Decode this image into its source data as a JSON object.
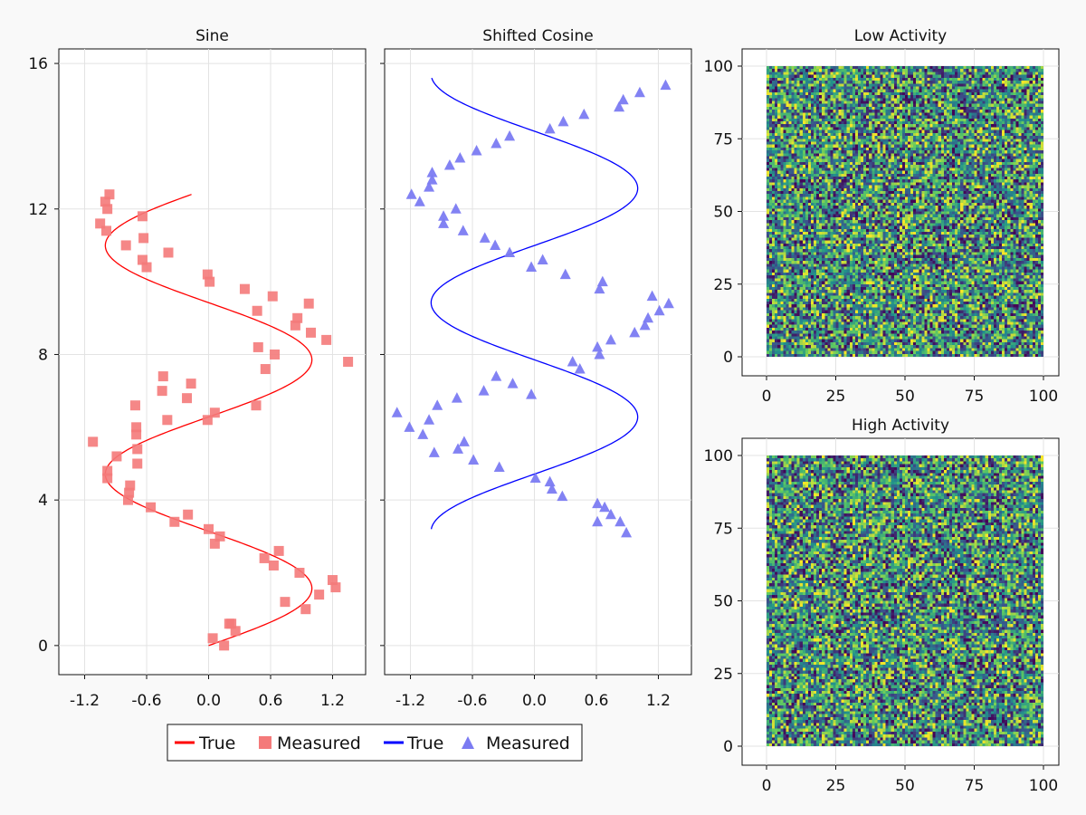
{
  "chart_data": [
    {
      "type": "line+scatter",
      "title": "Sine",
      "xlim": [
        -1.45,
        1.52
      ],
      "ylim": [
        -0.8,
        16.4
      ],
      "xticks": [
        -1.2,
        -0.6,
        0.0,
        0.6,
        1.2
      ],
      "xtick_labels": [
        "-1.2",
        "-0.6",
        "0.0",
        "0.6",
        "1.2"
      ],
      "yticks": [
        0,
        4,
        8,
        12,
        16
      ],
      "ytick_labels": [
        "0",
        "4",
        "8",
        "12",
        "16"
      ],
      "grid": true,
      "series": [
        {
          "name": "True",
          "kind": "line",
          "color": "#ff0000",
          "function": "x = sin(y), y from 0 to 12.4"
        },
        {
          "name": "Measured",
          "kind": "scatter",
          "marker": "square",
          "color": "#f47a7a",
          "x": [
            0.15,
            0.04,
            0.22,
            0.26,
            0.2,
            0.94,
            0.74,
            1.2,
            1.23,
            1.07,
            0.88,
            0.63,
            0.54,
            0.68,
            0.06,
            0.11,
            0.0,
            -0.2,
            -0.33,
            -0.56,
            -0.78,
            -0.77,
            -0.98,
            -0.98,
            -0.76,
            -0.69,
            -0.89,
            -0.69,
            -1.12,
            -0.7,
            -0.7,
            -0.01,
            0.46,
            0.06,
            -0.21,
            -0.45,
            -0.44,
            0.55,
            0.64,
            0.48,
            1.14,
            0.84,
            1.35,
            0.99,
            0.86,
            0.97,
            0.62,
            0.47,
            0.35,
            0.01,
            -0.01,
            -0.6,
            -0.64,
            -0.39,
            -0.8,
            -0.63,
            -0.99,
            -1.05,
            -0.64,
            -0.98,
            -1.0,
            -0.96,
            -0.71,
            -0.4,
            -0.17
          ],
          "y": [
            0.0,
            0.2,
            0.6,
            0.4,
            0.6,
            1.0,
            1.2,
            1.8,
            1.6,
            1.4,
            2.0,
            2.2,
            2.4,
            2.6,
            2.8,
            3.0,
            3.2,
            3.6,
            3.4,
            3.8,
            4.0,
            4.2,
            4.6,
            4.8,
            4.4,
            5.0,
            5.2,
            5.4,
            5.6,
            5.8,
            6.0,
            6.2,
            6.6,
            6.4,
            6.8,
            7.0,
            7.4,
            7.6,
            8.0,
            8.2,
            8.4,
            8.8,
            7.8,
            8.6,
            9.0,
            9.4,
            9.6,
            9.2,
            9.8,
            10.0,
            10.2,
            10.4,
            10.6,
            10.8,
            11.0,
            11.2,
            11.4,
            11.6,
            11.8,
            12.0,
            12.2,
            12.4,
            6.6,
            6.2,
            7.2
          ]
        }
      ]
    },
    {
      "type": "line+scatter",
      "title": "Shifted Cosine",
      "xlim": [
        -1.45,
        1.52
      ],
      "ylim": [
        -0.8,
        16.4
      ],
      "xticks": [
        -1.2,
        -0.6,
        0.0,
        0.6,
        1.2
      ],
      "xtick_labels": [
        "-1.2",
        "-0.6",
        "0.0",
        "0.6",
        "1.2"
      ],
      "yticks": [
        0,
        4,
        8,
        12,
        16
      ],
      "grid": true,
      "series": [
        {
          "name": "True",
          "kind": "line",
          "color": "#0000ff",
          "function": "x = cos(y), y from 3.2 to 15.6"
        },
        {
          "name": "Measured",
          "kind": "scatter",
          "marker": "triangle",
          "color": "#7b7bf2",
          "x": [
            0.89,
            0.61,
            0.83,
            0.74,
            0.68,
            0.61,
            0.27,
            0.17,
            0.15,
            0.01,
            -0.34,
            -0.59,
            -0.97,
            -0.74,
            -0.68,
            -1.08,
            -1.21,
            -1.02,
            -1.33,
            -0.94,
            -0.75,
            -0.49,
            -0.21,
            -0.37,
            0.44,
            0.37,
            0.63,
            0.61,
            0.74,
            0.97,
            1.07,
            1.1,
            1.21,
            1.3,
            1.14,
            0.63,
            0.66,
            0.3,
            -0.03,
            0.08,
            -0.24,
            -0.38,
            -0.48,
            -0.69,
            -0.88,
            -0.88,
            -0.76,
            -1.11,
            -1.19,
            -1.02,
            -0.99,
            -0.99,
            -0.82,
            -0.72,
            -0.56,
            -0.37,
            -0.24,
            0.15,
            0.28,
            0.48,
            0.82,
            0.86,
            1.02,
            1.27,
            -0.03
          ],
          "y": [
            3.1,
            3.4,
            3.4,
            3.6,
            3.8,
            3.9,
            4.1,
            4.3,
            4.5,
            4.6,
            4.9,
            5.1,
            5.3,
            5.4,
            5.6,
            5.8,
            6.0,
            6.2,
            6.4,
            6.6,
            6.8,
            7.0,
            7.2,
            7.4,
            7.6,
            7.8,
            8.0,
            8.2,
            8.4,
            8.6,
            8.8,
            9.0,
            9.2,
            9.4,
            9.6,
            9.8,
            10.0,
            10.2,
            10.4,
            10.6,
            10.8,
            11.0,
            11.2,
            11.4,
            11.6,
            11.8,
            12.0,
            12.2,
            12.4,
            12.6,
            12.8,
            13.0,
            13.2,
            13.4,
            13.6,
            13.8,
            14.0,
            14.2,
            14.4,
            14.6,
            14.8,
            15.0,
            15.2,
            15.4,
            6.9
          ]
        }
      ]
    },
    {
      "type": "heatmap",
      "title": "Low Activity",
      "grid_size": [
        100,
        100
      ],
      "values": "uniform random noise, 0..1 (100×100 cells)",
      "colormap": [
        "#440154",
        "#3b528b",
        "#21918c",
        "#5ec962",
        "#fde725"
      ],
      "xlim": [
        0,
        100
      ],
      "ylim": [
        0,
        100
      ],
      "xticks": [
        0,
        25,
        50,
        75,
        100
      ],
      "xtick_labels": [
        "0",
        "25",
        "50",
        "75",
        "100"
      ],
      "yticks": [
        0,
        25,
        50,
        75,
        100
      ],
      "ytick_labels": [
        "0",
        "25",
        "50",
        "75",
        "100"
      ]
    },
    {
      "type": "heatmap",
      "title": "High Activity",
      "grid_size": [
        100,
        100
      ],
      "values": "uniform random noise, 0..1 (100×100 cells)",
      "colormap": [
        "#440154",
        "#3b528b",
        "#21918c",
        "#5ec962",
        "#fde725"
      ],
      "xlim": [
        0,
        100
      ],
      "ylim": [
        0,
        100
      ],
      "xticks": [
        0,
        25,
        50,
        75,
        100
      ],
      "xtick_labels": [
        "0",
        "25",
        "50",
        "75",
        "100"
      ],
      "yticks": [
        0,
        25,
        50,
        75,
        100
      ],
      "ytick_labels": [
        "0",
        "25",
        "50",
        "75",
        "100"
      ]
    }
  ],
  "legend": {
    "placement": "bottom-center",
    "entries": [
      {
        "label": "True",
        "kind": "line",
        "color": "#ff0000"
      },
      {
        "label": "Measured",
        "kind": "square",
        "color": "#f47a7a"
      },
      {
        "label": "True",
        "kind": "line",
        "color": "#0000ff"
      },
      {
        "label": "Measured",
        "kind": "triangle",
        "color": "#7b7bf2"
      }
    ]
  }
}
